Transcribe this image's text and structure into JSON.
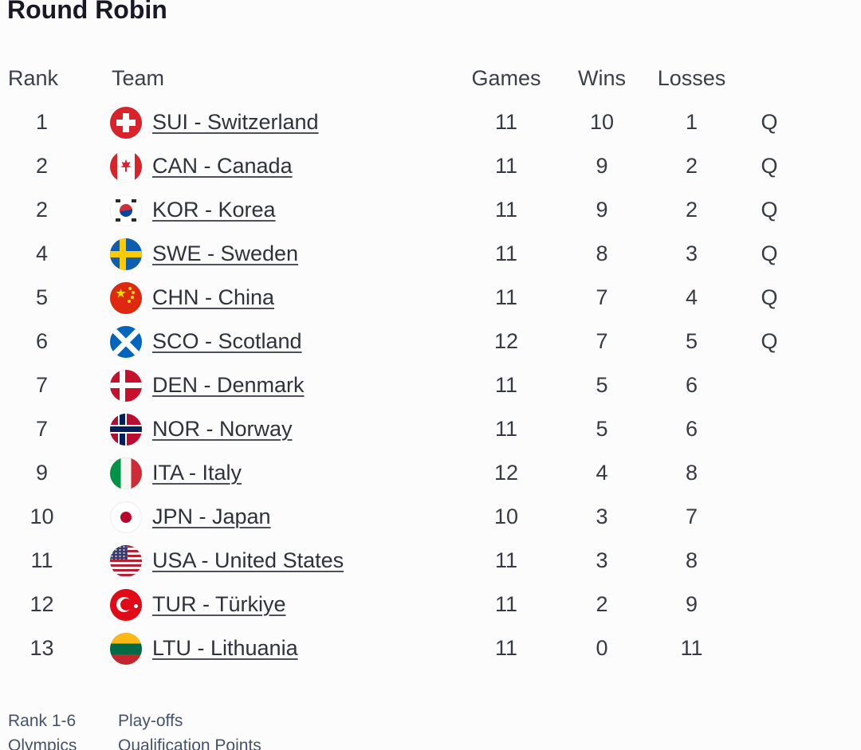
{
  "page": {
    "title": "Round Robin"
  },
  "colors": {
    "title": "#181826",
    "header-text": "#3b3f48",
    "cell-text": "#363a42",
    "link-text": "#2e323a",
    "legend-text": "#44536a",
    "background": "#fdfcfc"
  },
  "table": {
    "headers": {
      "rank": "Rank",
      "team": "Team",
      "games": "Games",
      "wins": "Wins",
      "losses": "Losses",
      "qualified": ""
    },
    "rows": [
      {
        "rank": "1",
        "icon": "switzerland-flag-icon",
        "flag": "flag-sui",
        "team": "SUI - Switzerland",
        "games": "11",
        "wins": "10",
        "losses": "1",
        "q": "Q"
      },
      {
        "rank": "2",
        "icon": "canada-flag-icon",
        "flag": "flag-can",
        "team": "CAN - Canada",
        "games": "11",
        "wins": "9",
        "losses": "2",
        "q": "Q"
      },
      {
        "rank": "2",
        "icon": "korea-flag-icon",
        "flag": "flag-kor",
        "team": "KOR - Korea",
        "games": "11",
        "wins": "9",
        "losses": "2",
        "q": "Q"
      },
      {
        "rank": "4",
        "icon": "sweden-flag-icon",
        "flag": "flag-swe",
        "team": "SWE - Sweden",
        "games": "11",
        "wins": "8",
        "losses": "3",
        "q": "Q"
      },
      {
        "rank": "5",
        "icon": "china-flag-icon",
        "flag": "flag-chn",
        "team": "CHN - China",
        "games": "11",
        "wins": "7",
        "losses": "4",
        "q": "Q"
      },
      {
        "rank": "6",
        "icon": "scotland-flag-icon",
        "flag": "flag-sco",
        "team": "SCO - Scotland",
        "games": "12",
        "wins": "7",
        "losses": "5",
        "q": "Q"
      },
      {
        "rank": "7",
        "icon": "denmark-flag-icon",
        "flag": "flag-den",
        "team": "DEN - Denmark",
        "games": "11",
        "wins": "5",
        "losses": "6",
        "q": ""
      },
      {
        "rank": "7",
        "icon": "norway-flag-icon",
        "flag": "flag-nor",
        "team": "NOR - Norway",
        "games": "11",
        "wins": "5",
        "losses": "6",
        "q": ""
      },
      {
        "rank": "9",
        "icon": "italy-flag-icon",
        "flag": "flag-ita",
        "team": "ITA - Italy",
        "games": "12",
        "wins": "4",
        "losses": "8",
        "q": ""
      },
      {
        "rank": "10",
        "icon": "japan-flag-icon",
        "flag": "flag-jpn",
        "team": "JPN - Japan",
        "games": "10",
        "wins": "3",
        "losses": "7",
        "q": ""
      },
      {
        "rank": "11",
        "icon": "usa-flag-icon",
        "flag": "flag-usa",
        "team": "USA - United States",
        "games": "11",
        "wins": "3",
        "losses": "8",
        "q": ""
      },
      {
        "rank": "12",
        "icon": "turkiye-flag-icon",
        "flag": "flag-tur",
        "team": "TUR - Türkiye",
        "games": "11",
        "wins": "2",
        "losses": "9",
        "q": ""
      },
      {
        "rank": "13",
        "icon": "lithuania-flag-icon",
        "flag": "flag-ltu",
        "team": "LTU - Lithuania",
        "games": "11",
        "wins": "0",
        "losses": "11",
        "q": ""
      }
    ]
  },
  "legend": {
    "rows": [
      {
        "term": "Rank 1-6",
        "description": "Play-offs"
      },
      {
        "term": "Olympics",
        "description": "Qualification Points"
      }
    ]
  }
}
